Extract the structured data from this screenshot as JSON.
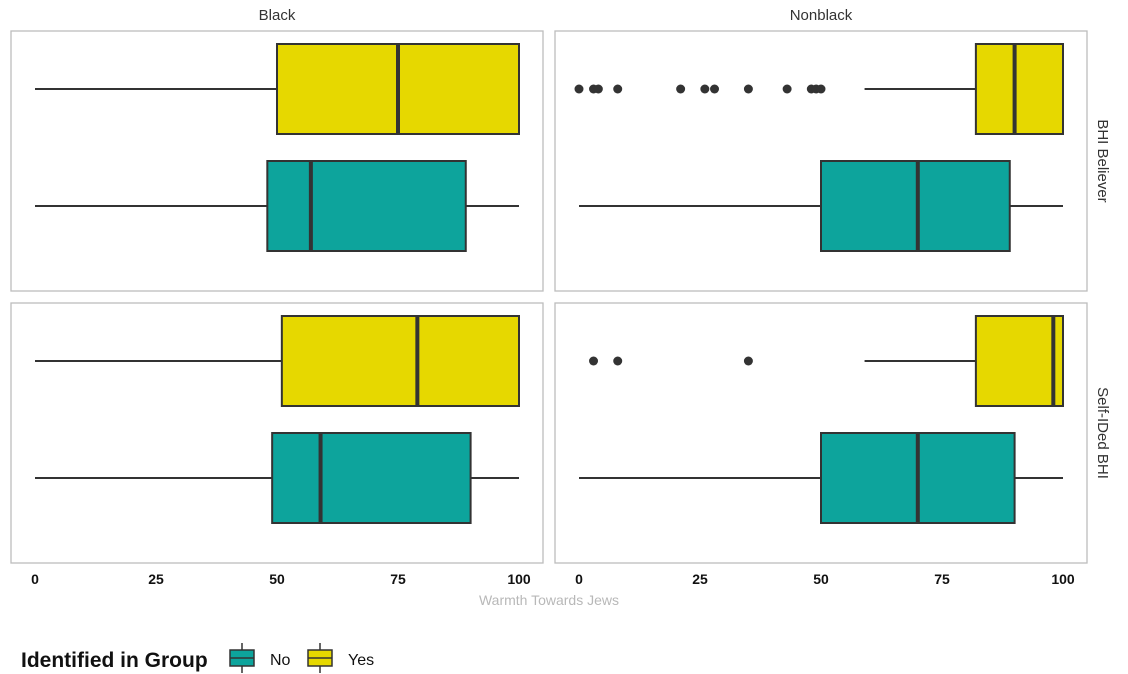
{
  "chart_data": {
    "type": "boxplot",
    "xlabel": "Warmth Towards Jews",
    "xlim": [
      0,
      100
    ],
    "xticks": [
      0,
      25,
      50,
      75,
      100
    ],
    "columns": [
      "Black",
      "Nonblack"
    ],
    "rows": [
      "BHI Believer",
      "Self-IDed BHI"
    ],
    "legend": {
      "title": "Identified in Group",
      "position": "bottom-left",
      "entries": [
        {
          "label": "No",
          "color": "#0da49c"
        },
        {
          "label": "Yes",
          "color": "#e6d800"
        }
      ]
    },
    "panels": [
      {
        "column": "Black",
        "row": "BHI Believer",
        "boxes": [
          {
            "group": "Yes",
            "min": 0,
            "q1": 50,
            "median": 75,
            "q3": 100,
            "max": 100,
            "outliers": []
          },
          {
            "group": "No",
            "min": 0,
            "q1": 48,
            "median": 57,
            "q3": 89,
            "max": 100,
            "outliers": []
          }
        ]
      },
      {
        "column": "Nonblack",
        "row": "BHI Believer",
        "boxes": [
          {
            "group": "Yes",
            "min": 59,
            "q1": 82,
            "median": 90,
            "q3": 100,
            "max": 100,
            "outliers": [
              0,
              3,
              4,
              8,
              21,
              26,
              28,
              35,
              43,
              48,
              49,
              50
            ]
          },
          {
            "group": "No",
            "min": 0,
            "q1": 50,
            "median": 70,
            "q3": 89,
            "max": 100,
            "outliers": []
          }
        ]
      },
      {
        "column": "Black",
        "row": "Self-IDed BHI",
        "boxes": [
          {
            "group": "Yes",
            "min": 0,
            "q1": 51,
            "median": 79,
            "q3": 100,
            "max": 100,
            "outliers": []
          },
          {
            "group": "No",
            "min": 0,
            "q1": 49,
            "median": 59,
            "q3": 90,
            "max": 100,
            "outliers": []
          }
        ]
      },
      {
        "column": "Nonblack",
        "row": "Self-IDed BHI",
        "boxes": [
          {
            "group": "Yes",
            "min": 59,
            "q1": 82,
            "median": 98,
            "q3": 100,
            "max": 100,
            "outliers": [
              3,
              8,
              35
            ]
          },
          {
            "group": "No",
            "min": 0,
            "q1": 50,
            "median": 70,
            "q3": 90,
            "max": 100,
            "outliers": []
          }
        ]
      }
    ]
  }
}
